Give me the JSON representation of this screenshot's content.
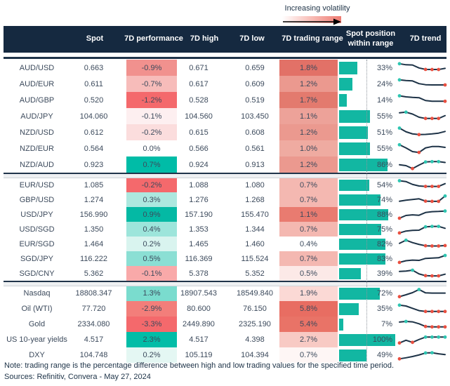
{
  "legend": {
    "label": "Increasing volatility"
  },
  "header": {
    "spot": "Spot",
    "performance": "7D performance",
    "high": "7D high",
    "low": "7D low",
    "range": "7D trading range",
    "position": "Spot position within range",
    "trend": "7D trend"
  },
  "colors": {
    "header_bg": "#152940",
    "bar_teal": "#12b7a2",
    "spark_line": "#1d3246",
    "dot_up": "#2ec5b1",
    "dot_down": "#e94f40",
    "accent_red": "#f4696c",
    "accent_teal": "#00bca7"
  },
  "chart_data": {
    "type": "table",
    "columns": [
      "",
      "Spot",
      "7D performance",
      "7D high",
      "7D low",
      "7D trading range",
      "Spot position within range",
      "7D trend"
    ],
    "sections": [
      {
        "rows": [
          {
            "label": "AUD/USD",
            "spot": "0.663",
            "perf": "-0.9%",
            "perf_bg": "#f1918e",
            "high": "0.671",
            "low": "0.659",
            "range": "1.8%",
            "range_bg": "#e27167",
            "pos": 33,
            "pos_label": "33%",
            "spark": {
              "y": [
                88,
                78,
                76,
                48,
                34,
                33,
                33,
                44
              ],
              "dots": [
                [
                  0,
                  "up"
                ],
                [
                  4,
                  "down"
                ],
                [
                  5,
                  "down"
                ],
                [
                  6,
                  "down"
                ]
              ]
            }
          },
          {
            "label": "AUD/EUR",
            "spot": "0.611",
            "perf": "-0.7%",
            "perf_bg": "#f7bcba",
            "high": "0.617",
            "low": "0.609",
            "range": "1.2%",
            "range_bg": "#eb998f",
            "pos": 24,
            "pos_label": "24%",
            "spark": {
              "y": [
                88,
                82,
                78,
                52,
                42,
                40,
                40,
                40
              ],
              "dots": [
                [
                  0,
                  "up"
                ],
                [
                  7,
                  "down"
                ]
              ]
            }
          },
          {
            "label": "AUD/GBP",
            "spot": "0.520",
            "perf": "-1.2%",
            "perf_bg": "#f4696c",
            "high": "0.528",
            "low": "0.519",
            "range": "1.7%",
            "range_bg": "#e37a6e",
            "pos": 14,
            "pos_label": "14%",
            "spark": {
              "y": [
                90,
                80,
                75,
                72,
                45,
                38,
                38,
                38
              ],
              "dots": [
                [
                  0,
                  "up"
                ],
                [
                  7,
                  "down"
                ]
              ]
            }
          },
          {
            "label": "AUD/JPY",
            "spot": "104.060",
            "perf": "-0.1%",
            "perf_bg": "#fdeff0",
            "high": "104.560",
            "low": "103.450",
            "range": "1.1%",
            "range_bg": "#eda299",
            "pos": 55,
            "pos_label": "55%",
            "spark": {
              "y": [
                82,
                88,
                70,
                40,
                28,
                28,
                28,
                55
              ],
              "dots": [
                [
                  1,
                  "up"
                ],
                [
                  4,
                  "down"
                ],
                [
                  5,
                  "down"
                ],
                [
                  6,
                  "down"
                ]
              ]
            }
          },
          {
            "label": "NZD/USD",
            "spot": "0.612",
            "perf": "-0.2%",
            "perf_bg": "#fbdddd",
            "high": "0.615",
            "low": "0.608",
            "range": "1.2%",
            "range_bg": "#eb998f",
            "pos": 51,
            "pos_label": "51%",
            "spark": {
              "y": [
                90,
                55,
                35,
                28,
                30,
                35,
                42,
                58
              ],
              "dots": [
                [
                  0,
                  "up"
                ],
                [
                  3,
                  "down"
                ]
              ]
            }
          },
          {
            "label": "NZD/EUR",
            "spot": "0.564",
            "perf": "0.0%",
            "perf_bg": "#ffffff",
            "high": "0.566",
            "low": "0.561",
            "range": "1.0%",
            "range_bg": "#efaba1",
            "pos": 55,
            "pos_label": "55%",
            "spark": {
              "y": [
                85,
                55,
                20,
                12,
                55,
                68,
                68,
                60
              ],
              "dots": [
                [
                  0,
                  "up"
                ],
                [
                  3,
                  "down"
                ]
              ]
            }
          },
          {
            "label": "NZD/AUD",
            "spot": "0.923",
            "perf": "0.7%",
            "perf_bg": "#00bca7",
            "high": "0.924",
            "low": "0.913",
            "range": "1.2%",
            "range_bg": "#eb998f",
            "pos": 86,
            "pos_label": "86%",
            "spark": {
              "y": [
                48,
                40,
                12,
                45,
                75,
                78,
                78,
                70
              ],
              "dots": [
                [
                  2,
                  "down"
                ],
                [
                  4,
                  "up"
                ],
                [
                  5,
                  "up"
                ],
                [
                  6,
                  "up"
                ]
              ]
            }
          }
        ]
      },
      {
        "rows": [
          {
            "label": "EUR/USD",
            "spot": "1.085",
            "perf": "-0.2%",
            "perf_bg": "#f4696c",
            "high": "1.088",
            "low": "1.080",
            "range": "0.7%",
            "range_bg": "#f4b8b1",
            "pos": 54,
            "pos_label": "54%",
            "spark": {
              "y": [
                90,
                82,
                55,
                40,
                36,
                36,
                36,
                62
              ],
              "dots": [
                [
                  0,
                  "up"
                ],
                [
                  4,
                  "down"
                ],
                [
                  5,
                  "down"
                ],
                [
                  6,
                  "down"
                ]
              ]
            }
          },
          {
            "label": "GBP/USD",
            "spot": "1.274",
            "perf": "0.3%",
            "perf_bg": "#ade8df",
            "high": "1.276",
            "low": "1.268",
            "range": "0.7%",
            "range_bg": "#f4b8b1",
            "pos": 74,
            "pos_label": "74%",
            "spark": {
              "y": [
                35,
                45,
                52,
                58,
                36,
                34,
                34,
                85
              ],
              "dots": [
                [
                  4,
                  "down"
                ],
                [
                  5,
                  "down"
                ],
                [
                  6,
                  "down"
                ],
                [
                  7,
                  "up"
                ]
              ]
            }
          },
          {
            "label": "USD/JPY",
            "spot": "156.990",
            "perf": "0.9%",
            "perf_bg": "#04b9a4",
            "high": "157.190",
            "low": "155.470",
            "range": "1.1%",
            "range_bg": "#e97b70",
            "pos": 88,
            "pos_label": "88%",
            "spark": {
              "y": [
                14,
                40,
                46,
                42,
                68,
                76,
                78,
                82
              ],
              "dots": [
                [
                  0,
                  "down"
                ],
                [
                  7,
                  "up"
                ]
              ]
            }
          },
          {
            "label": "USD/SGD",
            "spot": "1.350",
            "perf": "0.4%",
            "perf_bg": "#9de5db",
            "high": "1.353",
            "low": "1.344",
            "range": "0.7%",
            "range_bg": "#f4b8b1",
            "pos": 75,
            "pos_label": "75%",
            "spark": {
              "y": [
                14,
                32,
                38,
                40,
                72,
                76,
                76,
                58
              ],
              "dots": [
                [
                  0,
                  "down"
                ],
                [
                  4,
                  "up"
                ],
                [
                  5,
                  "up"
                ],
                [
                  6,
                  "up"
                ]
              ]
            }
          },
          {
            "label": "EUR/SGD",
            "spot": "1.464",
            "perf": "0.2%",
            "perf_bg": "#d9f4ef",
            "high": "1.465",
            "low": "1.460",
            "range": "0.4%",
            "range_bg": "#ffffff",
            "pos": 82,
            "pos_label": "82%",
            "spark": {
              "y": [
                55,
                85,
                62,
                45,
                32,
                30,
                30,
                34
              ],
              "dots": [
                [
                  1,
                  "up"
                ],
                [
                  4,
                  "down"
                ],
                [
                  5,
                  "down"
                ],
                [
                  6,
                  "down"
                ],
                [
                  7,
                  "down"
                ]
              ]
            }
          },
          {
            "label": "SGD/JPY",
            "spot": "116.222",
            "perf": "0.5%",
            "perf_bg": "#8bdfd4",
            "high": "116.369",
            "low": "115.524",
            "range": "0.7%",
            "range_bg": "#f4b8b1",
            "pos": 83,
            "pos_label": "83%",
            "spark": {
              "y": [
                14,
                30,
                36,
                33,
                52,
                55,
                58,
                80
              ],
              "dots": [
                [
                  0,
                  "down"
                ],
                [
                  7,
                  "up"
                ]
              ]
            }
          },
          {
            "label": "SGD/CNY",
            "spot": "5.362",
            "perf": "-0.1%",
            "perf_bg": "#f9a9a9",
            "high": "5.378",
            "low": "5.352",
            "range": "0.5%",
            "range_bg": "#fce9e7",
            "pos": 39,
            "pos_label": "39%",
            "spark": {
              "y": [
                68,
                72,
                80,
                45,
                28,
                26,
                26,
                42
              ],
              "dots": [
                [
                  2,
                  "up"
                ],
                [
                  4,
                  "down"
                ],
                [
                  5,
                  "down"
                ],
                [
                  6,
                  "down"
                ]
              ]
            }
          }
        ]
      },
      {
        "rows": [
          {
            "label": "Nasdaq",
            "spot": "18808.347",
            "perf": "1.3%",
            "perf_bg": "#7adcce",
            "high": "18907.543",
            "low": "18549.840",
            "range": "1.9%",
            "range_bg": "#fbd9d5",
            "pos": 72,
            "pos_label": "72%",
            "spark": {
              "y": [
                22,
                40,
                60,
                90,
                58,
                56,
                56,
                56
              ],
              "dots": [
                [
                  0,
                  "down"
                ],
                [
                  3,
                  "up"
                ]
              ]
            }
          },
          {
            "label": "Oil (WTI)",
            "spot": "77.720",
            "perf": "-2.9%",
            "perf_bg": "#f37e7a",
            "high": "80.600",
            "low": "76.150",
            "range": "5.8%",
            "range_bg": "#e86d62",
            "pos": 35,
            "pos_label": "35%",
            "spark": {
              "y": [
                88,
                80,
                58,
                36,
                28,
                28,
                28,
                28
              ],
              "dots": [
                [
                  0,
                  "up"
                ],
                [
                  4,
                  "down"
                ],
                [
                  5,
                  "down"
                ],
                [
                  6,
                  "down"
                ],
                [
                  7,
                  "down"
                ]
              ]
            }
          },
          {
            "label": "Gold",
            "spot": "2334.080",
            "perf": "-3.3%",
            "perf_bg": "#f4696c",
            "high": "2449.890",
            "low": "2325.190",
            "range": "5.4%",
            "range_bg": "#e97367",
            "pos": 7,
            "pos_label": "7%",
            "spark": {
              "y": [
                74,
                80,
                76,
                58,
                32,
                28,
                28,
                28
              ],
              "dots": [
                [
                  1,
                  "up"
                ],
                [
                  4,
                  "down"
                ],
                [
                  5,
                  "down"
                ],
                [
                  6,
                  "down"
                ],
                [
                  7,
                  "down"
                ]
              ]
            }
          },
          {
            "label": "US 10-year yields",
            "spot": "4.517",
            "perf": "2.3%",
            "perf_bg": "#02bda7",
            "high": "4.517",
            "low": "4.398",
            "range": "2.7%",
            "range_bg": "#f8cac4",
            "pos": 100,
            "pos_label": "100%",
            "spark": {
              "y": [
                22,
                48,
                28,
                55,
                78,
                78,
                78,
                78
              ],
              "dots": [
                [
                  0,
                  "down"
                ],
                [
                  2,
                  "down"
                ],
                [
                  4,
                  "up"
                ],
                [
                  5,
                  "up"
                ],
                [
                  6,
                  "up"
                ],
                [
                  7,
                  "up"
                ]
              ]
            }
          },
          {
            "label": "DXY",
            "spot": "104.748",
            "perf": "0.2%",
            "perf_bg": "#e4f7f3",
            "high": "105.119",
            "low": "104.394",
            "range": "0.7%",
            "range_bg": "#fef6f5",
            "pos": 49,
            "pos_label": "49%",
            "spark": {
              "y": [
                18,
                28,
                40,
                55,
                74,
                76,
                66,
                58
              ],
              "dots": [
                [
                  0,
                  "down"
                ],
                [
                  4,
                  "up"
                ],
                [
                  5,
                  "up"
                ]
              ]
            }
          }
        ]
      }
    ]
  },
  "footer": {
    "note": "Note: trading range is the percentage difference between high and low trading values for the specified time period.",
    "sources": "Sources: Refinitiv, Convera - May 27, 2024"
  }
}
